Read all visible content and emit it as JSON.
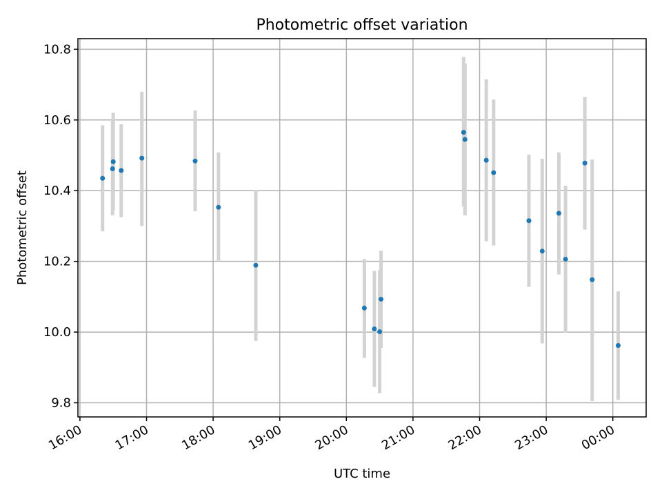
{
  "chart_data": {
    "type": "scatter",
    "title": "Photometric offset variation",
    "xlabel": "UTC time",
    "ylabel": "Photometric offset",
    "grid": true,
    "colors": {
      "point": "#1f77b4",
      "errorbar": "#d3d3d3"
    },
    "xlim_hours": [
      15.97,
      24.5
    ],
    "ylim": [
      9.76,
      10.83
    ],
    "x_ticks": [
      {
        "value": 16,
        "label": "16:00"
      },
      {
        "value": 17,
        "label": "17:00"
      },
      {
        "value": 18,
        "label": "18:00"
      },
      {
        "value": 19,
        "label": "19:00"
      },
      {
        "value": 20,
        "label": "20:00"
      },
      {
        "value": 21,
        "label": "21:00"
      },
      {
        "value": 22,
        "label": "22:00"
      },
      {
        "value": 23,
        "label": "23:00"
      },
      {
        "value": 24,
        "label": "00:00"
      }
    ],
    "y_ticks": [
      {
        "value": 9.8,
        "label": "9.8"
      },
      {
        "value": 10.0,
        "label": "10.0"
      },
      {
        "value": 10.2,
        "label": "10.2"
      },
      {
        "value": 10.4,
        "label": "10.4"
      },
      {
        "value": 10.6,
        "label": "10.6"
      },
      {
        "value": 10.8,
        "label": "10.8"
      }
    ],
    "points": [
      {
        "x": 16.34,
        "y": 10.435,
        "err_low": 10.285,
        "err_high": 10.585
      },
      {
        "x": 16.49,
        "y": 10.462,
        "err_low": 10.33,
        "err_high": 10.6
      },
      {
        "x": 16.5,
        "y": 10.482,
        "err_low": 10.345,
        "err_high": 10.62
      },
      {
        "x": 16.62,
        "y": 10.457,
        "err_low": 10.325,
        "err_high": 10.588
      },
      {
        "x": 16.93,
        "y": 10.492,
        "err_low": 10.3,
        "err_high": 10.68
      },
      {
        "x": 17.73,
        "y": 10.484,
        "err_low": 10.342,
        "err_high": 10.627
      },
      {
        "x": 18.08,
        "y": 10.353,
        "err_low": 10.2,
        "err_high": 10.508
      },
      {
        "x": 18.64,
        "y": 10.189,
        "err_low": 9.975,
        "err_high": 10.4
      },
      {
        "x": 20.27,
        "y": 10.068,
        "err_low": 9.927,
        "err_high": 10.207
      },
      {
        "x": 20.42,
        "y": 10.009,
        "err_low": 9.845,
        "err_high": 10.173
      },
      {
        "x": 20.5,
        "y": 10.001,
        "err_low": 9.827,
        "err_high": 10.175
      },
      {
        "x": 20.52,
        "y": 10.093,
        "err_low": 9.955,
        "err_high": 10.23
      },
      {
        "x": 21.76,
        "y": 10.565,
        "err_low": 10.355,
        "err_high": 10.778
      },
      {
        "x": 21.78,
        "y": 10.545,
        "err_low": 10.33,
        "err_high": 10.76
      },
      {
        "x": 22.1,
        "y": 10.486,
        "err_low": 10.257,
        "err_high": 10.715
      },
      {
        "x": 22.21,
        "y": 10.451,
        "err_low": 10.245,
        "err_high": 10.658
      },
      {
        "x": 22.74,
        "y": 10.315,
        "err_low": 10.128,
        "err_high": 10.502
      },
      {
        "x": 22.94,
        "y": 10.229,
        "err_low": 9.968,
        "err_high": 10.49
      },
      {
        "x": 23.19,
        "y": 10.336,
        "err_low": 10.163,
        "err_high": 10.508
      },
      {
        "x": 23.29,
        "y": 10.206,
        "err_low": 9.998,
        "err_high": 10.414
      },
      {
        "x": 23.58,
        "y": 10.478,
        "err_low": 10.29,
        "err_high": 10.665
      },
      {
        "x": 23.69,
        "y": 10.148,
        "err_low": 9.805,
        "err_high": 10.488
      },
      {
        "x": 24.08,
        "y": 9.962,
        "err_low": 9.808,
        "err_high": 10.115
      }
    ]
  }
}
